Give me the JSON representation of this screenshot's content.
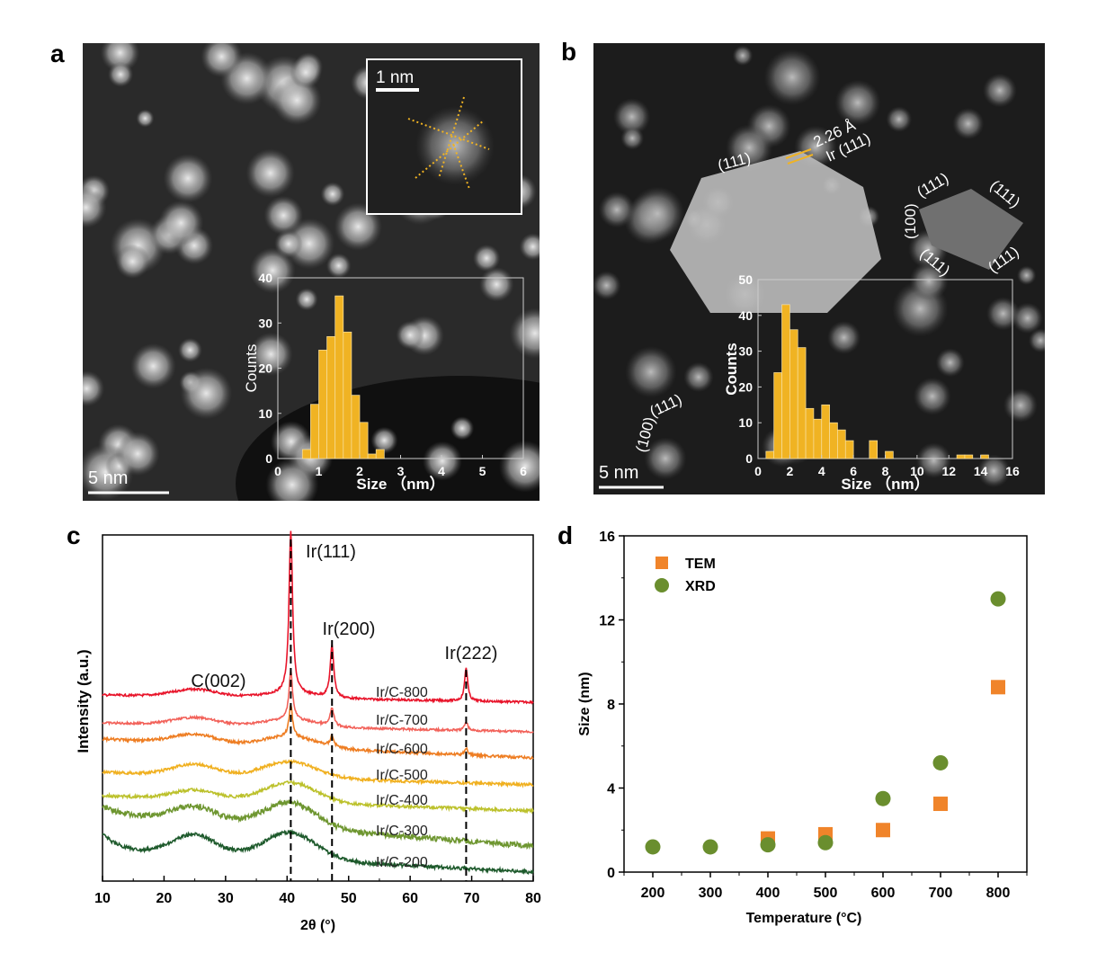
{
  "panels": {
    "a": "a",
    "b": "b",
    "c": "c",
    "d": "d"
  },
  "panel_a": {
    "scale_bar": "5 nm",
    "inset_scale_bar": "1 nm"
  },
  "panel_b": {
    "scale_bar": "5 nm",
    "annotations": {
      "d_spacing": "2.26 Å",
      "plane_label": "Ir (111)",
      "large_particle_facet": "(111)",
      "small_particle_facets": [
        "(111)",
        "(111)",
        "(111)",
        "(111)",
        "(100)"
      ],
      "corner_particle_facets": [
        "(111)",
        "(100)"
      ]
    }
  },
  "chart_data": [
    {
      "id": "a-histogram",
      "type": "bar",
      "xlabel": "Size （nm）",
      "ylabel": "Counts",
      "xlim": [
        0,
        6
      ],
      "ylim": [
        0,
        40
      ],
      "xticks": [
        "0",
        "1",
        "2",
        "3",
        "4",
        "5",
        "6"
      ],
      "yticks": [
        "0",
        "10",
        "20",
        "30",
        "40"
      ],
      "bin_width": 0.2,
      "bin_starts": [
        0.6,
        0.8,
        1.0,
        1.2,
        1.4,
        1.6,
        1.8,
        2.0,
        2.2,
        2.4
      ],
      "values": [
        2,
        12,
        24,
        27,
        36,
        28,
        14,
        8,
        1,
        2
      ],
      "color": "#F0B323"
    },
    {
      "id": "b-histogram",
      "type": "bar",
      "xlabel": "Size （nm）",
      "ylabel": "Counts",
      "xlim": [
        0,
        16
      ],
      "ylim": [
        0,
        50
      ],
      "xticks": [
        "0",
        "2",
        "4",
        "6",
        "8",
        "10",
        "12",
        "14",
        "16"
      ],
      "yticks": [
        "0",
        "10",
        "20",
        "30",
        "40",
        "50"
      ],
      "bin_width": 0.5,
      "bin_starts": [
        0.5,
        1.0,
        1.5,
        2.0,
        2.5,
        3.0,
        3.5,
        4.0,
        4.5,
        5.0,
        5.5,
        7.0,
        8.0,
        12.5,
        13.0,
        14.0
      ],
      "values": [
        2,
        24,
        43,
        36,
        31,
        14,
        11,
        15,
        10,
        8,
        5,
        5,
        2,
        1,
        1,
        1
      ],
      "color": "#F0B323"
    },
    {
      "id": "c-xrd",
      "type": "line",
      "xlabel": "2θ (°)",
      "ylabel": "Intensity (a.u.)",
      "xlim": [
        10,
        80
      ],
      "xticks": [
        "10",
        "20",
        "30",
        "40",
        "50",
        "60",
        "70",
        "80"
      ],
      "peak_labels": [
        {
          "label": "C(002)",
          "x": 25
        },
        {
          "label": "Ir(111)",
          "x": 40.6
        },
        {
          "label": "Ir(200)",
          "x": 47.3
        },
        {
          "label": "Ir(222)",
          "x": 69.1
        }
      ],
      "reference_lines": [
        40.6,
        47.3,
        69.1
      ],
      "series": [
        {
          "name": "Ir/C-800",
          "color": "#E8142A"
        },
        {
          "name": "Ir/C-700",
          "color": "#F2625A"
        },
        {
          "name": "Ir/C-600",
          "color": "#EE7D22"
        },
        {
          "name": "Ir/C-500",
          "color": "#F0B020"
        },
        {
          "name": "Ir/C-400",
          "color": "#BCC12C"
        },
        {
          "name": "Ir/C-300",
          "color": "#6E9630"
        },
        {
          "name": "Ir/C-200",
          "color": "#1E5A2C"
        }
      ]
    },
    {
      "id": "d-size",
      "type": "scatter",
      "xlabel": "Temperature (°C)",
      "ylabel": "Size (nm)",
      "xlim": [
        150,
        850
      ],
      "ylim": [
        0,
        16
      ],
      "xticks": [
        "200",
        "300",
        "400",
        "500",
        "600",
        "700",
        "800"
      ],
      "yticks": [
        "0",
        "4",
        "8",
        "12",
        "16"
      ],
      "legend": "top-left",
      "series": [
        {
          "name": "TEM",
          "marker": "square",
          "color": "#F0842A",
          "x": [
            400,
            500,
            600,
            700,
            800
          ],
          "y": [
            1.6,
            1.8,
            2.0,
            3.25,
            8.8
          ]
        },
        {
          "name": "XRD",
          "marker": "circle",
          "color": "#6A8E2E",
          "x": [
            200,
            300,
            400,
            500,
            600,
            700,
            800
          ],
          "y": [
            1.2,
            1.2,
            1.3,
            1.4,
            3.5,
            5.2,
            13.0
          ]
        }
      ]
    }
  ]
}
